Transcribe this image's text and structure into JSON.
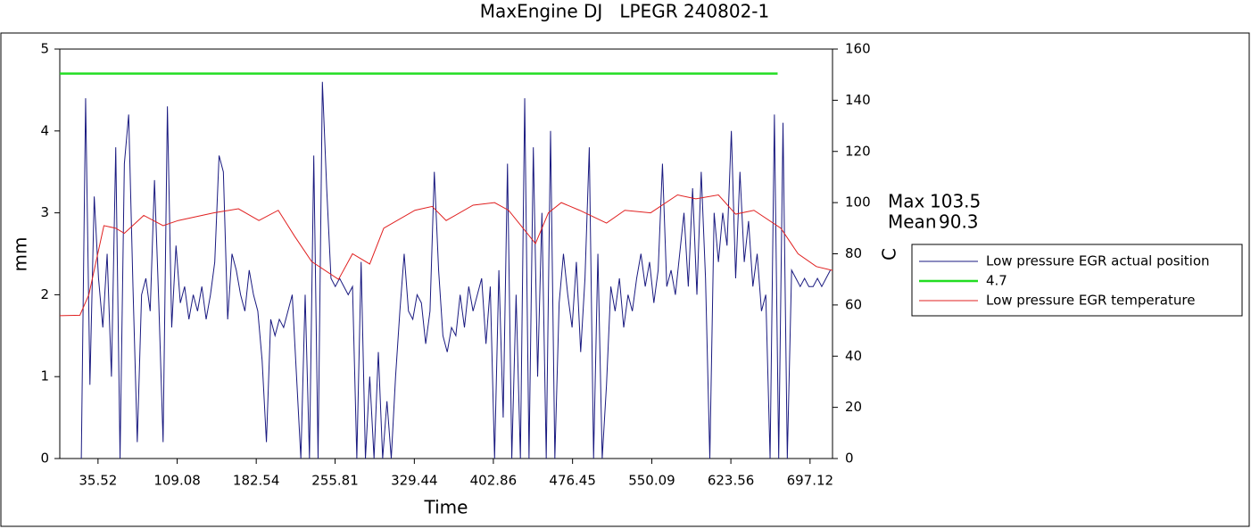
{
  "chart_data": {
    "type": "line",
    "title": "MaxEngine DJ   LPEGR 240802-1",
    "x_label": "Time",
    "y_label": "mm",
    "y2_label": "C",
    "xlim": [
      0,
      718
    ],
    "xticks": [
      35.52,
      109.08,
      182.54,
      255.81,
      329.44,
      402.86,
      476.45,
      550.09,
      623.56,
      697.12
    ],
    "ylim": [
      0,
      5
    ],
    "yticks": [
      0,
      1,
      2,
      3,
      4,
      5
    ],
    "y2lim": [
      0,
      160
    ],
    "y2ticks": [
      0,
      20,
      40,
      60,
      80,
      100,
      120,
      140,
      160
    ],
    "legend": "right",
    "stats": [
      {
        "label": "Max",
        "value": 103.5
      },
      {
        "label": "Mean",
        "value": 90.3
      }
    ],
    "series": [
      {
        "name": "Low pressure EGR actual position",
        "color": "#1a1a80",
        "x": [
          20,
          24,
          28,
          32,
          36,
          40,
          44,
          48,
          52,
          56,
          60,
          64,
          68,
          72,
          76,
          80,
          84,
          88,
          92,
          96,
          100,
          104,
          108,
          112,
          116,
          120,
          124,
          128,
          132,
          136,
          140,
          144,
          148,
          152,
          156,
          160,
          164,
          168,
          172,
          176,
          180,
          184,
          188,
          192,
          196,
          200,
          204,
          208,
          212,
          216,
          220,
          224,
          228,
          232,
          236,
          240,
          244,
          248,
          252,
          256,
          260,
          264,
          268,
          272,
          276,
          280,
          284,
          288,
          292,
          296,
          300,
          304,
          308,
          312,
          316,
          320,
          324,
          328,
          332,
          336,
          340,
          344,
          348,
          352,
          356,
          360,
          364,
          368,
          372,
          376,
          380,
          384,
          388,
          392,
          396,
          400,
          404,
          408,
          412,
          416,
          420,
          424,
          428,
          432,
          436,
          440,
          444,
          448,
          452,
          456,
          460,
          464,
          468,
          472,
          476,
          480,
          484,
          488,
          492,
          496,
          500,
          504,
          508,
          512,
          516,
          520,
          524,
          528,
          532,
          536,
          540,
          544,
          548,
          552,
          556,
          560,
          564,
          568,
          572,
          576,
          580,
          584,
          588,
          592,
          596,
          600,
          604,
          608,
          612,
          616,
          620,
          624,
          628,
          632,
          636,
          640,
          644,
          648,
          652,
          656,
          660,
          664,
          668,
          672,
          676,
          680,
          684,
          688,
          692,
          696,
          700,
          704,
          708,
          712,
          716
        ],
        "values": [
          0,
          4.4,
          0.9,
          3.2,
          2.2,
          1.6,
          2.5,
          1.0,
          3.8,
          0,
          3.6,
          4.2,
          2.1,
          0.2,
          2.0,
          2.2,
          1.8,
          3.4,
          1.9,
          0.2,
          4.3,
          1.6,
          2.6,
          1.9,
          2.1,
          1.7,
          2.0,
          1.8,
          2.1,
          1.7,
          2.0,
          2.4,
          3.7,
          3.5,
          1.7,
          2.5,
          2.3,
          2.0,
          1.8,
          2.3,
          2.0,
          1.8,
          1.2,
          0.2,
          1.7,
          1.5,
          1.7,
          1.6,
          1.8,
          2.0,
          1.0,
          0,
          2.0,
          0,
          3.7,
          0,
          4.6,
          3.3,
          2.2,
          2.1,
          2.2,
          2.1,
          2.0,
          2.1,
          0,
          2.4,
          0,
          1.0,
          0,
          1.3,
          0,
          0.7,
          0,
          1.0,
          1.8,
          2.5,
          1.8,
          1.7,
          2.0,
          1.9,
          1.4,
          1.8,
          3.5,
          2.3,
          1.5,
          1.3,
          1.6,
          1.5,
          2.0,
          1.6,
          2.1,
          1.8,
          2.0,
          2.2,
          1.4,
          2.1,
          0,
          2.3,
          0.5,
          3.6,
          0,
          2.0,
          0,
          4.4,
          0,
          3.8,
          1.0,
          3.0,
          0,
          4.0,
          0,
          1.9,
          2.5,
          2.0,
          1.6,
          2.4,
          1.3,
          2.2,
          3.8,
          0,
          2.5,
          0,
          0.9,
          2.1,
          1.8,
          2.2,
          1.6,
          2.0,
          1.8,
          2.2,
          2.5,
          2.1,
          2.4,
          1.9,
          2.3,
          3.6,
          2.1,
          2.3,
          2.0,
          2.5,
          3.0,
          2.1,
          3.3,
          2.0,
          3.5,
          2.2,
          0,
          3.0,
          2.4,
          3.0,
          2.6,
          4.0,
          2.2,
          3.5,
          2.4,
          2.9,
          2.1,
          2.5,
          1.8,
          2.0,
          0,
          4.2,
          0,
          4.1,
          0,
          2.3,
          2.2,
          2.1,
          2.2,
          2.1,
          2.1,
          2.2,
          2.1,
          2.2,
          2.3
        ]
      },
      {
        "name": "4.7",
        "color": "#22dd22",
        "x": [
          0,
          667
        ],
        "values": [
          4.7,
          4.7
        ]
      },
      {
        "name": "Low pressure EGR temperature",
        "color": "#e02020",
        "axis": "y2",
        "x": [
          0,
          18.7,
          27,
          41,
          52,
          60,
          78,
          96,
          110,
          143,
          166,
          185,
          203,
          218,
          234,
          259,
          272,
          288,
          301,
          330,
          346,
          359,
          384,
          404,
          417,
          442,
          454,
          466,
          483,
          508,
          525,
          549,
          574,
          591,
          612,
          628,
          645,
          670,
          686,
          703,
          718
        ],
        "values": [
          55.8,
          56,
          64,
          91,
          90,
          88,
          95,
          91,
          93,
          96,
          97.6,
          93,
          97,
          87,
          77,
          70,
          80,
          76,
          90,
          97,
          98.5,
          93,
          99,
          100,
          97,
          84,
          96,
          100,
          97,
          92,
          97,
          96,
          103,
          101.5,
          103,
          95.5,
          97,
          90,
          80,
          75,
          73.5
        ]
      }
    ]
  }
}
